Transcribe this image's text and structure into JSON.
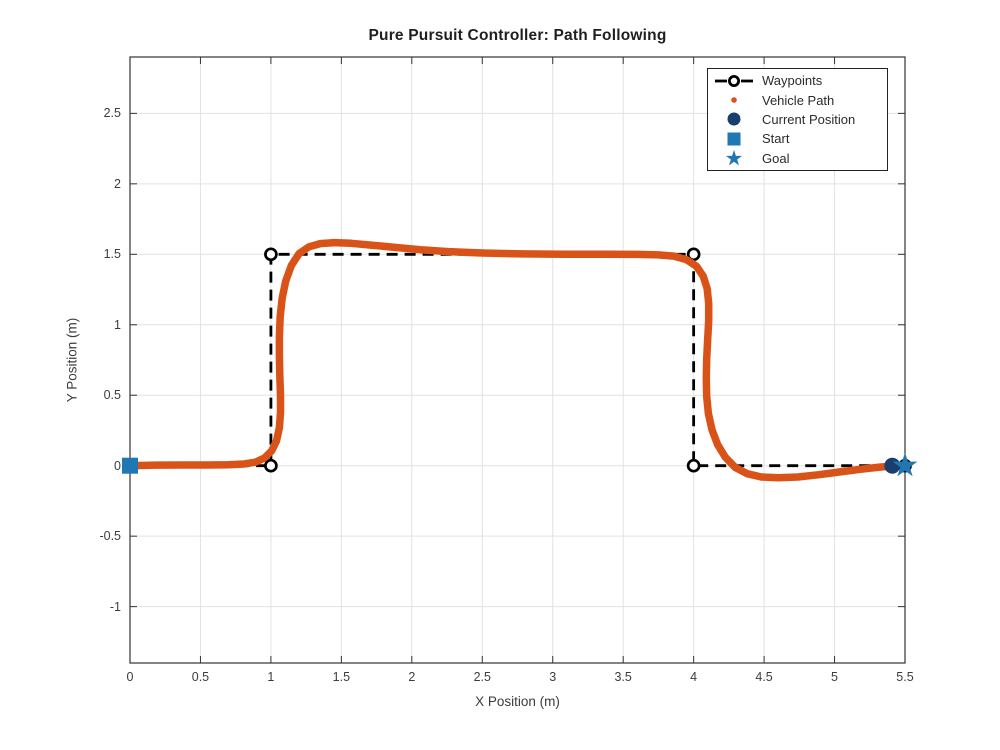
{
  "figure": {
    "background": "#ffffff"
  },
  "chart_data": {
    "type": "line",
    "title": "Pure Pursuit Controller: Path Following",
    "xlabel": "X Position (m)",
    "ylabel": "Y Position (m)",
    "xlim": [
      0,
      5.5
    ],
    "ylim": [
      -1.4,
      2.9
    ],
    "grid": true,
    "legend_position": "top-right",
    "xticks": [
      0,
      0.5,
      1,
      1.5,
      2,
      2.5,
      3,
      3.5,
      4,
      4.5,
      5,
      5.5
    ],
    "xtick_labels": [
      "0",
      "0.5",
      "1",
      "1.5",
      "2",
      "2.5",
      "3",
      "3.5",
      "4",
      "4.5",
      "5",
      "5.5"
    ],
    "yticks": [
      -1,
      -0.5,
      0,
      0.5,
      1,
      1.5,
      2,
      2.5
    ],
    "ytick_labels": [
      "-1",
      "-0.5",
      "0",
      "0.5",
      "1",
      "1.5",
      "2",
      "2.5"
    ],
    "legend": [
      "Waypoints",
      "Vehicle Path",
      "Current Position",
      "Start",
      "Goal"
    ],
    "series": [
      {
        "name": "Waypoints",
        "style": "dashed-line-open-circle-markers",
        "color": "#000000",
        "points": [
          [
            0,
            0
          ],
          [
            1,
            0
          ],
          [
            1,
            1.5
          ],
          [
            4,
            1.5
          ],
          [
            4,
            0
          ],
          [
            5.5,
            0
          ]
        ]
      },
      {
        "name": "Vehicle Path",
        "style": "thick-dot-trail",
        "color": "#D95319",
        "points": [
          [
            0,
            0
          ],
          [
            0.18,
            0.004
          ],
          [
            0.38,
            0.005
          ],
          [
            0.56,
            0.005
          ],
          [
            0.7,
            0.007
          ],
          [
            0.81,
            0.012
          ],
          [
            0.89,
            0.025
          ],
          [
            0.955,
            0.055
          ],
          [
            1.005,
            0.105
          ],
          [
            1.04,
            0.175
          ],
          [
            1.06,
            0.27
          ],
          [
            1.068,
            0.38
          ],
          [
            1.068,
            0.5
          ],
          [
            1.063,
            0.64
          ],
          [
            1.06,
            0.78
          ],
          [
            1.06,
            0.92
          ],
          [
            1.066,
            1.06
          ],
          [
            1.08,
            1.19
          ],
          [
            1.105,
            1.31
          ],
          [
            1.145,
            1.42
          ],
          [
            1.2,
            1.505
          ],
          [
            1.27,
            1.553
          ],
          [
            1.35,
            1.576
          ],
          [
            1.45,
            1.583
          ],
          [
            1.57,
            1.578
          ],
          [
            1.71,
            1.565
          ],
          [
            1.88,
            1.549
          ],
          [
            2.06,
            1.533
          ],
          [
            2.26,
            1.519
          ],
          [
            2.5,
            1.509
          ],
          [
            2.78,
            1.503
          ],
          [
            3.08,
            1.501
          ],
          [
            3.38,
            1.5
          ],
          [
            3.6,
            1.499
          ],
          [
            3.75,
            1.496
          ],
          [
            3.86,
            1.487
          ],
          [
            3.95,
            1.462
          ],
          [
            4.02,
            1.415
          ],
          [
            4.068,
            1.345
          ],
          [
            4.096,
            1.255
          ],
          [
            4.107,
            1.15
          ],
          [
            4.107,
            1.03
          ],
          [
            4.1,
            0.9
          ],
          [
            4.093,
            0.76
          ],
          [
            4.09,
            0.62
          ],
          [
            4.093,
            0.49
          ],
          [
            4.105,
            0.37
          ],
          [
            4.13,
            0.255
          ],
          [
            4.17,
            0.15
          ],
          [
            4.225,
            0.06
          ],
          [
            4.295,
            -0.012
          ],
          [
            4.38,
            -0.057
          ],
          [
            4.48,
            -0.08
          ],
          [
            4.6,
            -0.086
          ],
          [
            4.74,
            -0.08
          ],
          [
            4.89,
            -0.064
          ],
          [
            5.04,
            -0.044
          ],
          [
            5.19,
            -0.025
          ],
          [
            5.32,
            -0.01
          ],
          [
            5.41,
            -0.003
          ]
        ]
      },
      {
        "name": "Current Position",
        "style": "filled-circle-marker",
        "color": "#1A3E6E",
        "points": [
          [
            5.41,
            0
          ]
        ]
      },
      {
        "name": "Start",
        "style": "filled-square-marker",
        "color": "#1F77B4",
        "points": [
          [
            0,
            0
          ]
        ]
      },
      {
        "name": "Goal",
        "style": "filled-star-marker",
        "color": "#1F77B4",
        "points": [
          [
            5.5,
            0
          ]
        ]
      }
    ]
  },
  "colors": {
    "grid": "#E2E2E2",
    "axis": "#333333",
    "tick_text": "#3C3C3C",
    "title_text": "#1F1F1F",
    "legend_border": "#222222",
    "legend_text": "#2B2B2B"
  }
}
